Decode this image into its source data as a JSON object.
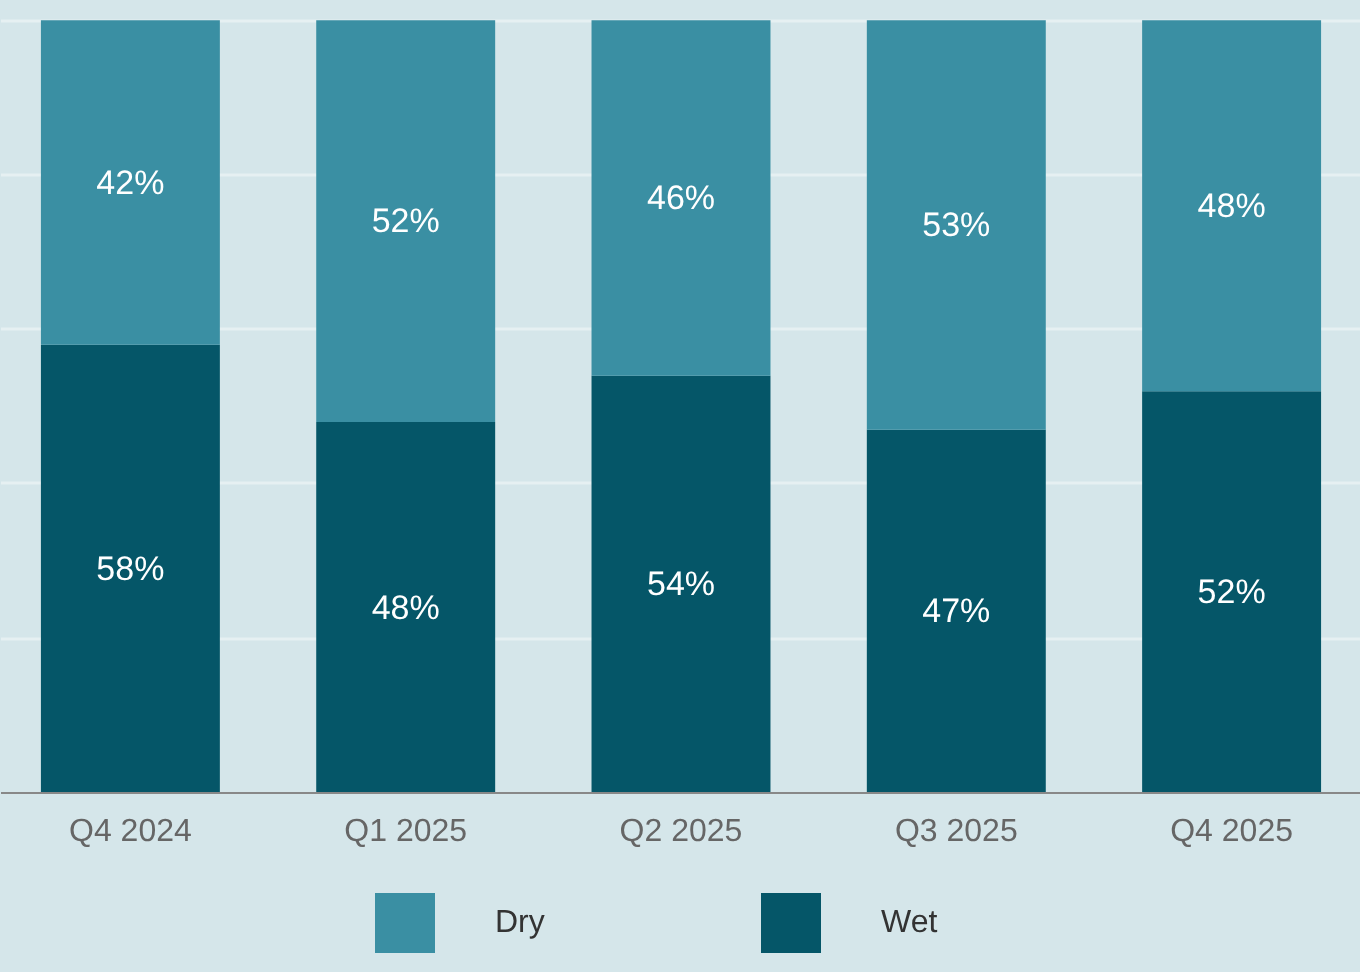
{
  "chart_data": {
    "type": "bar",
    "stacked": true,
    "categories": [
      "Q4 2024",
      "Q1 2025",
      "Q2 2025",
      "Q3 2025",
      "Q4 2025"
    ],
    "series": [
      {
        "name": "Wet",
        "color": "#055668",
        "values": [
          58,
          48,
          54,
          47,
          52
        ],
        "value_labels": [
          "58%",
          "48%",
          "54%",
          "47%",
          "52%"
        ]
      },
      {
        "name": "Dry",
        "color": "#3a8fa3",
        "values": [
          42,
          52,
          46,
          53,
          48
        ],
        "value_labels": [
          "42%",
          "52%",
          "46%",
          "53%",
          "48%"
        ]
      }
    ],
    "tick_labels": "x",
    "grid": "y",
    "legend": "bottom"
  }
}
